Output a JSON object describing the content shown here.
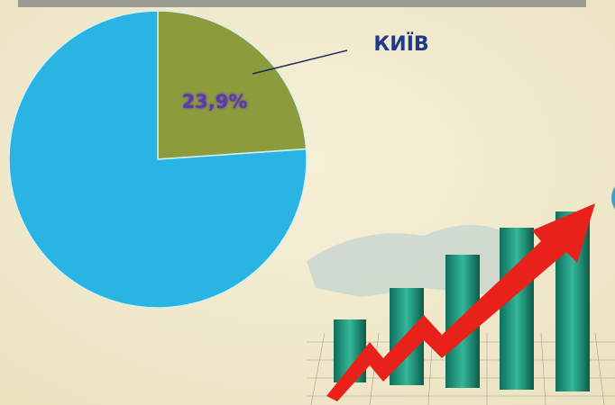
{
  "chart_data": {
    "type": "pie",
    "categories": [
      "КИЇВ",
      null
    ],
    "values": [
      23.9,
      76.1
    ],
    "value_labels": [
      "23,9%",
      null
    ],
    "colors": [
      "#8c9c3c",
      "#29b4e4"
    ]
  }
}
